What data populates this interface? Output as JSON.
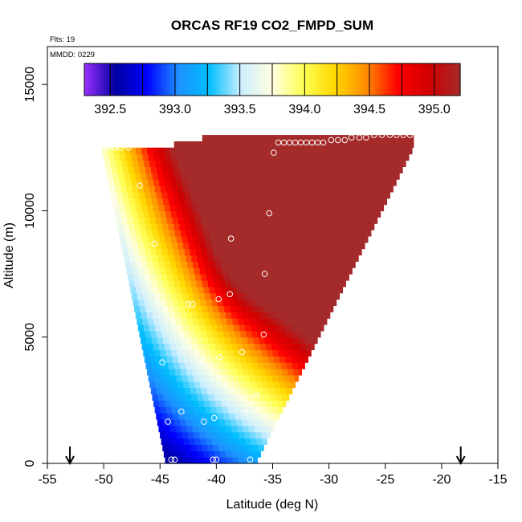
{
  "chart_data": {
    "type": "heatmap",
    "title": "ORCAS RF19 CO2_FMPD_SUM",
    "annotations": {
      "flights": "Flts: 19",
      "date": "MMDD: 0229"
    },
    "xlabel": "Latitude (deg N)",
    "ylabel": "Altitude (m)",
    "xlim": [
      -55,
      -15
    ],
    "ylim": [
      0,
      16500
    ],
    "x_ticks": [
      -55,
      -50,
      -45,
      -40,
      -35,
      -30,
      -25,
      -20,
      -15
    ],
    "x_tick_labels": [
      "-55",
      "-50",
      "-45",
      "-40",
      "-35",
      "-30",
      "-25",
      "-20",
      "-15"
    ],
    "y_ticks": [
      0,
      5000,
      10000,
      15000
    ],
    "y_tick_labels": [
      "0",
      "5000",
      "10000",
      "15000"
    ],
    "colorbar": {
      "range": [
        392.3,
        395.2
      ],
      "ticks": [
        392.5,
        393.0,
        393.5,
        394.0,
        394.5,
        395.0
      ],
      "tick_labels": [
        "392.5",
        "393.0",
        "393.5",
        "394.0",
        "394.5",
        "395.0"
      ],
      "colors": [
        "#9b30ff",
        "#0000a0",
        "#0000ff",
        "#1e90ff",
        "#00bfff",
        "#cceeff",
        "#ffffe0",
        "#ffff55",
        "#ffd700",
        "#ff8c00",
        "#ff0000",
        "#d00000",
        "#a52a2a"
      ]
    },
    "field_envelope": {
      "bottom_alt": 0,
      "bottom_lat_min": -44.5,
      "bottom_lat_max": -36.5,
      "top_alt": 12500,
      "top_lat_min": -50.2,
      "top_lat_max": -22.5,
      "cap_alt": 13000,
      "cap_lat_min": -45.0
    },
    "observations": [
      {
        "lat": -44.0,
        "alt": 150
      },
      {
        "lat": -43.7,
        "alt": 150
      },
      {
        "lat": -40.3,
        "alt": 150
      },
      {
        "lat": -40.0,
        "alt": 150
      },
      {
        "lat": -37.0,
        "alt": 150
      },
      {
        "lat": -44.3,
        "alt": 1650
      },
      {
        "lat": -43.1,
        "alt": 2050
      },
      {
        "lat": -41.1,
        "alt": 1650
      },
      {
        "lat": -40.2,
        "alt": 1800
      },
      {
        "lat": -37.4,
        "alt": 2000
      },
      {
        "lat": -36.4,
        "alt": 2700
      },
      {
        "lat": -44.8,
        "alt": 4000
      },
      {
        "lat": -42.9,
        "alt": 4500
      },
      {
        "lat": -41.5,
        "alt": 4000
      },
      {
        "lat": -39.7,
        "alt": 4200
      },
      {
        "lat": -37.7,
        "alt": 4400
      },
      {
        "lat": -35.8,
        "alt": 5100
      },
      {
        "lat": -45.2,
        "alt": 6300
      },
      {
        "lat": -42.5,
        "alt": 6300
      },
      {
        "lat": -42.1,
        "alt": 6300
      },
      {
        "lat": -39.8,
        "alt": 6500
      },
      {
        "lat": -38.8,
        "alt": 6700
      },
      {
        "lat": -35.7,
        "alt": 7500
      },
      {
        "lat": -45.5,
        "alt": 8700
      },
      {
        "lat": -38.7,
        "alt": 8900
      },
      {
        "lat": -35.3,
        "alt": 9900
      },
      {
        "lat": -46.8,
        "alt": 11000
      },
      {
        "lat": -34.9,
        "alt": 12300
      },
      {
        "lat": -50.0,
        "alt": 12500
      },
      {
        "lat": -49.5,
        "alt": 12500
      },
      {
        "lat": -49.0,
        "alt": 12500
      },
      {
        "lat": -48.5,
        "alt": 12500
      },
      {
        "lat": -47.8,
        "alt": 12500
      },
      {
        "lat": -34.5,
        "alt": 12700
      },
      {
        "lat": -34.0,
        "alt": 12700
      },
      {
        "lat": -33.5,
        "alt": 12700
      },
      {
        "lat": -33.0,
        "alt": 12700
      },
      {
        "lat": -32.5,
        "alt": 12700
      },
      {
        "lat": -32.0,
        "alt": 12700
      },
      {
        "lat": -31.5,
        "alt": 12700
      },
      {
        "lat": -31.0,
        "alt": 12700
      },
      {
        "lat": -30.5,
        "alt": 12700
      },
      {
        "lat": -29.8,
        "alt": 12800
      },
      {
        "lat": -29.2,
        "alt": 12800
      },
      {
        "lat": -28.6,
        "alt": 12800
      },
      {
        "lat": -28.0,
        "alt": 12900
      },
      {
        "lat": -27.3,
        "alt": 12900
      },
      {
        "lat": -26.7,
        "alt": 12900
      },
      {
        "lat": -26.0,
        "alt": 13000
      },
      {
        "lat": -25.3,
        "alt": 13000
      },
      {
        "lat": -24.6,
        "alt": 13000
      },
      {
        "lat": -24.0,
        "alt": 13000
      },
      {
        "lat": -23.4,
        "alt": 13000
      },
      {
        "lat": -22.8,
        "alt": 13000
      }
    ],
    "arrows": [
      {
        "lat": -53.0
      },
      {
        "lat": -18.3
      }
    ]
  }
}
